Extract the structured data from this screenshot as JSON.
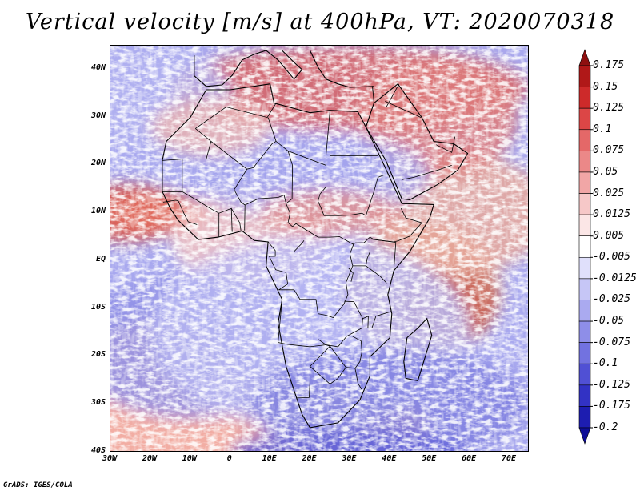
{
  "title": "Vertical velocity [m/s] at 400hPa, VT: 2020070318",
  "credit": "GrADS: IGES/COLA",
  "map": {
    "lon_range": [
      -30,
      75
    ],
    "lat_range": [
      -40,
      45
    ],
    "lat_ticks": [
      {
        "value": 40,
        "label": "40N"
      },
      {
        "value": 30,
        "label": "30N"
      },
      {
        "value": 20,
        "label": "20N"
      },
      {
        "value": 10,
        "label": "10N"
      },
      {
        "value": 0,
        "label": "EQ"
      },
      {
        "value": -10,
        "label": "10S"
      },
      {
        "value": -20,
        "label": "20S"
      },
      {
        "value": -30,
        "label": "30S"
      },
      {
        "value": -40,
        "label": "40S"
      }
    ],
    "lon_ticks": [
      {
        "value": -30,
        "label": "30W"
      },
      {
        "value": -20,
        "label": "20W"
      },
      {
        "value": -10,
        "label": "10W"
      },
      {
        "value": 0,
        "label": "0"
      },
      {
        "value": 10,
        "label": "10E"
      },
      {
        "value": 20,
        "label": "20E"
      },
      {
        "value": 30,
        "label": "30E"
      },
      {
        "value": 40,
        "label": "40E"
      },
      {
        "value": 50,
        "label": "50E"
      },
      {
        "value": 60,
        "label": "60E"
      },
      {
        "value": 70,
        "label": "70E"
      }
    ],
    "africa_outline": [
      [
        -17,
        21
      ],
      [
        -16,
        25
      ],
      [
        -10,
        30
      ],
      [
        -6,
        35.8
      ],
      [
        0,
        35.8
      ],
      [
        10,
        37
      ],
      [
        11,
        33
      ],
      [
        20,
        31
      ],
      [
        25,
        31.5
      ],
      [
        32,
        31.2
      ],
      [
        34,
        28
      ],
      [
        38,
        21
      ],
      [
        43,
        12
      ],
      [
        51,
        11.8
      ],
      [
        50,
        9
      ],
      [
        45,
        2
      ],
      [
        41,
        -2
      ],
      [
        39.5,
        -7
      ],
      [
        40.5,
        -11
      ],
      [
        40,
        -16
      ],
      [
        35,
        -20
      ],
      [
        35,
        -24
      ],
      [
        32.5,
        -29
      ],
      [
        27,
        -33.8
      ],
      [
        20,
        -34.8
      ],
      [
        18,
        -32
      ],
      [
        14,
        -22
      ],
      [
        12,
        -13
      ],
      [
        13,
        -8
      ],
      [
        9,
        -1
      ],
      [
        9.5,
        4
      ],
      [
        6,
        4.3
      ],
      [
        3,
        6.3
      ],
      [
        -3,
        5
      ],
      [
        -8,
        4.5
      ],
      [
        -13,
        8.5
      ],
      [
        -15,
        11
      ],
      [
        -17,
        14.5
      ],
      [
        -17,
        21
      ]
    ],
    "arabia_outline": [
      [
        34,
        28
      ],
      [
        36,
        33
      ],
      [
        42,
        37
      ],
      [
        48,
        30
      ],
      [
        51,
        25
      ],
      [
        56,
        24.5
      ],
      [
        59.5,
        22.5
      ],
      [
        57,
        19
      ],
      [
        52,
        16
      ],
      [
        45,
        12.8
      ],
      [
        43,
        13
      ],
      [
        39,
        21
      ],
      [
        34,
        28
      ]
    ],
    "madagascar_outline": [
      [
        49.3,
        -12
      ],
      [
        50.5,
        -15.5
      ],
      [
        47,
        -25
      ],
      [
        44,
        -24.5
      ],
      [
        43.5,
        -21
      ],
      [
        44.3,
        -16
      ],
      [
        47,
        -14
      ],
      [
        49.3,
        -12
      ]
    ],
    "europe_coast": [
      [
        -9,
        43
      ],
      [
        -9,
        38.7
      ],
      [
        -6,
        36.5
      ],
      [
        -2,
        36.8
      ],
      [
        0.5,
        38.8
      ],
      [
        3,
        42
      ],
      [
        6,
        43.2
      ],
      [
        9,
        44
      ],
      [
        12,
        42
      ],
      [
        16,
        38
      ],
      [
        18,
        40
      ],
      [
        16,
        41.5
      ],
      [
        13,
        44
      ]
    ],
    "turkey_coast": [
      [
        20,
        44
      ],
      [
        22,
        40.5
      ],
      [
        24,
        38
      ],
      [
        27,
        37
      ],
      [
        30,
        36.3
      ],
      [
        36,
        36.5
      ],
      [
        36,
        33
      ]
    ],
    "borders": [
      [
        [
          -8.7,
          27.7
        ],
        [
          -4.8,
          25
        ],
        [
          -6,
          21.3
        ],
        [
          -12,
          21.3
        ],
        [
          -17,
          21
        ]
      ],
      [
        [
          -8.7,
          27.7
        ],
        [
          -1,
          32.2
        ],
        [
          9.3,
          30
        ],
        [
          11.5,
          33
        ]
      ],
      [
        [
          9.5,
          30
        ],
        [
          11.5,
          25
        ],
        [
          10.5,
          24.5
        ],
        [
          5.8,
          19.5
        ],
        [
          4.2,
          19.2
        ],
        [
          -4.8,
          25
        ]
      ],
      [
        [
          11.5,
          25
        ],
        [
          14.5,
          23
        ],
        [
          24,
          20
        ],
        [
          24,
          22
        ],
        [
          25,
          31.5
        ]
      ],
      [
        [
          25,
          22
        ],
        [
          37,
          22
        ]
      ],
      [
        [
          24,
          20
        ],
        [
          24,
          15.5
        ],
        [
          22.5,
          14
        ],
        [
          22,
          12.5
        ],
        [
          22.8,
          11
        ],
        [
          23.5,
          9.5
        ],
        [
          27,
          9.5
        ],
        [
          30,
          9.6
        ],
        [
          33,
          10
        ],
        [
          34,
          9.5
        ],
        [
          36,
          14.5
        ],
        [
          37,
          17.5
        ],
        [
          38.6,
          18
        ]
      ],
      [
        [
          14.5,
          23
        ],
        [
          15.6,
          20
        ],
        [
          15.5,
          13
        ],
        [
          14,
          12
        ],
        [
          13.5,
          13.8
        ],
        [
          12,
          13.3
        ],
        [
          7,
          13
        ],
        [
          3.7,
          11.7
        ],
        [
          2.7,
          12.3
        ],
        [
          1,
          14.9
        ],
        [
          4.2,
          19.2
        ]
      ],
      [
        [
          -12,
          21.3
        ],
        [
          -12,
          14.5
        ],
        [
          -8.5,
          12.8
        ],
        [
          -5,
          11
        ],
        [
          -2.8,
          10
        ],
        [
          0.3,
          11
        ],
        [
          2.4,
          8
        ],
        [
          2.7,
          6.3
        ]
      ],
      [
        [
          -17,
          14.5
        ],
        [
          -12,
          14.5
        ]
      ],
      [
        [
          -16.8,
          12.3
        ],
        [
          -13.7,
          12.7
        ],
        [
          -13,
          12.6
        ],
        [
          -11.6,
          10
        ],
        [
          -10.5,
          8.2
        ],
        [
          -8.3,
          7.6
        ]
      ],
      [
        [
          -2.8,
          10
        ],
        [
          -2.8,
          5
        ]
      ],
      [
        [
          0.3,
          11
        ],
        [
          0.5,
          6.1
        ]
      ],
      [
        [
          3.7,
          11.7
        ],
        [
          3.6,
          6.4
        ]
      ],
      [
        [
          14,
          12
        ],
        [
          15,
          10
        ],
        [
          14.5,
          8
        ],
        [
          15.6,
          7.2
        ],
        [
          16.5,
          7.8
        ],
        [
          22,
          5
        ],
        [
          25,
          5
        ],
        [
          27.4,
          5.1
        ],
        [
          30.8,
          3.5
        ],
        [
          31.4,
          3.8
        ],
        [
          33.5,
          3.8
        ],
        [
          35,
          5
        ],
        [
          36,
          4.5
        ],
        [
          41,
          4
        ],
        [
          42,
          4.2
        ],
        [
          45,
          5.2
        ],
        [
          48,
          8
        ],
        [
          44,
          9
        ],
        [
          42.8,
          11
        ]
      ],
      [
        [
          9.5,
          4
        ],
        [
          11.3,
          2.2
        ],
        [
          11.3,
          1
        ],
        [
          9.8,
          1
        ],
        [
          11.4,
          -1.8
        ],
        [
          14,
          -2.4
        ],
        [
          14.4,
          -4.8
        ],
        [
          12.2,
          -6
        ],
        [
          16,
          -6
        ],
        [
          17.5,
          -8
        ],
        [
          21.5,
          -8
        ],
        [
          22,
          -11
        ],
        [
          24,
          -11.3
        ],
        [
          25.8,
          -11.8
        ],
        [
          28.5,
          -9
        ],
        [
          29.5,
          -7
        ],
        [
          29,
          -4.5
        ],
        [
          30.7,
          -1
        ],
        [
          30,
          1.5
        ],
        [
          31,
          3.7
        ]
      ],
      [
        [
          16,
          2
        ],
        [
          18,
          3.7
        ],
        [
          18.5,
          4.3
        ]
      ],
      [
        [
          13,
          -8
        ],
        [
          12,
          -17
        ],
        [
          14.3,
          -17.4
        ],
        [
          20,
          -17.9
        ],
        [
          24,
          -17.5
        ],
        [
          25,
          -17.8
        ],
        [
          20,
          -22
        ],
        [
          20,
          -24.7
        ],
        [
          19.8,
          -28.5
        ],
        [
          16.5,
          -28.6
        ]
      ],
      [
        [
          22,
          -11
        ],
        [
          22,
          -13
        ],
        [
          22,
          -16.3
        ],
        [
          24,
          -17.5
        ],
        [
          27,
          -17.9
        ],
        [
          29.2,
          -15.7
        ],
        [
          33,
          -14
        ],
        [
          33.2,
          -12
        ],
        [
          31,
          -8.5
        ],
        [
          28.6,
          -8.4
        ]
      ],
      [
        [
          25,
          -17.8
        ],
        [
          27,
          -20
        ],
        [
          29,
          -22.2
        ],
        [
          31.3,
          -22.4
        ],
        [
          32.5,
          -21
        ],
        [
          33,
          -19
        ],
        [
          32.8,
          -16.7
        ],
        [
          30.4,
          -15.6
        ]
      ],
      [
        [
          20,
          -24.7
        ],
        [
          20,
          -22
        ],
        [
          25,
          -25.7
        ],
        [
          27,
          -24.5
        ],
        [
          29,
          -22.2
        ]
      ],
      [
        [
          31.3,
          -22.4
        ],
        [
          32,
          -25.5
        ],
        [
          32.9,
          -26.8
        ]
      ],
      [
        [
          33.2,
          -12
        ],
        [
          34.6,
          -11.5
        ],
        [
          34.5,
          -14
        ],
        [
          35.5,
          -14
        ],
        [
          36.5,
          -11.5
        ],
        [
          40.4,
          -10.5
        ]
      ],
      [
        [
          30.7,
          -1
        ],
        [
          34,
          -1
        ],
        [
          37.6,
          -3.2
        ],
        [
          39.2,
          -4.6
        ]
      ],
      [
        [
          34,
          -1
        ],
        [
          34.3,
          0.5
        ],
        [
          35,
          1.9
        ],
        [
          35,
          4.6
        ],
        [
          41.5,
          3.9
        ],
        [
          41,
          -1.8
        ]
      ],
      [
        [
          29.6,
          -1.4
        ],
        [
          30.8,
          -2.5
        ],
        [
          30.3,
          -4.3
        ]
      ],
      [
        [
          36,
          33.3
        ],
        [
          35.6,
          36.6
        ]
      ],
      [
        [
          39,
          32
        ],
        [
          42.3,
          37
        ]
      ],
      [
        [
          38.8,
          33.4
        ],
        [
          47.8,
          30
        ]
      ],
      [
        [
          43,
          17
        ],
        [
          46,
          17.5
        ],
        [
          52,
          19
        ],
        [
          55.5,
          20
        ]
      ],
      [
        [
          51.6,
          24.3
        ],
        [
          55.5,
          22.7
        ],
        [
          56.3,
          26
        ]
      ]
    ]
  },
  "colorbar": {
    "labels": [
      "0.175",
      "0.15",
      "0.125",
      "0.1",
      "0.075",
      "0.05",
      "0.025",
      "0.0125",
      "0.005",
      "-0.005",
      "-0.0125",
      "-0.025",
      "-0.05",
      "-0.075",
      "-0.1",
      "-0.125",
      "-0.175",
      "-0.2"
    ],
    "colors": [
      "#8e1010",
      "#b01818",
      "#cd2a2a",
      "#dc4646",
      "#e46868",
      "#eb8888",
      "#f1a6a6",
      "#f6c8c8",
      "#fbe6e6",
      "#ffffff",
      "#e0e0fb",
      "#c6c6f6",
      "#aaaaf0",
      "#8e8ee8",
      "#7272e0",
      "#5050d4",
      "#3232c4",
      "#1d1db0",
      "#0e0e96"
    ]
  }
}
